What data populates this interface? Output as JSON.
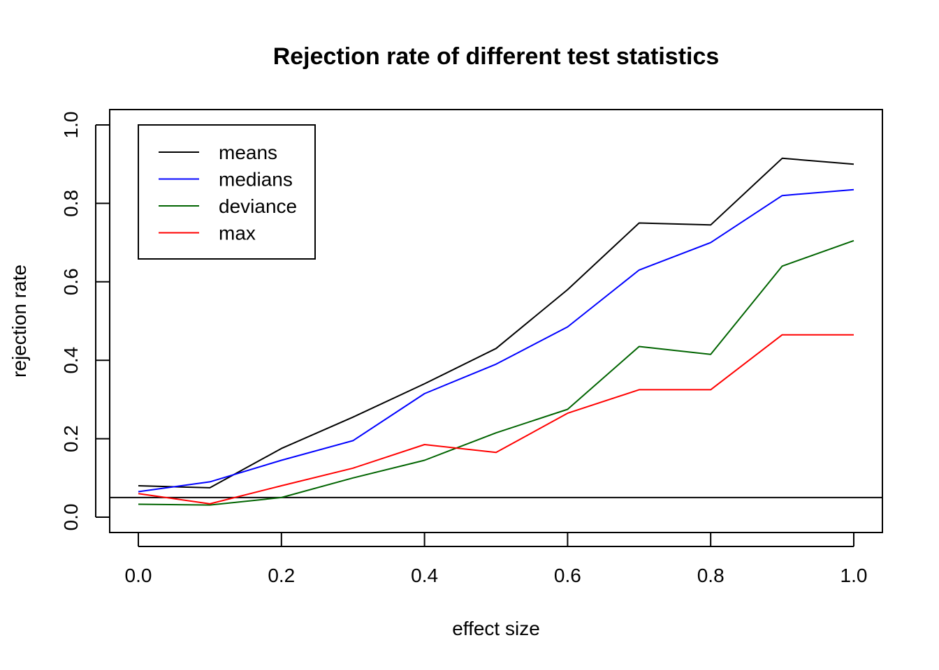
{
  "chart_data": {
    "type": "line",
    "title": "Rejection rate of different test statistics",
    "xlabel": "effect size",
    "ylabel": "rejection rate",
    "xlim": [
      0.0,
      1.0
    ],
    "ylim": [
      0.0,
      1.0
    ],
    "x_ticks": [
      "0.0",
      "0.2",
      "0.4",
      "0.6",
      "0.8",
      "1.0"
    ],
    "y_ticks": [
      "0.0",
      "0.2",
      "0.4",
      "0.6",
      "0.8",
      "1.0"
    ],
    "grid": false,
    "legend_position": "top-left",
    "x": [
      0.0,
      0.1,
      0.2,
      0.3,
      0.4,
      0.5,
      0.6,
      0.7,
      0.8,
      0.9,
      1.0
    ],
    "series": [
      {
        "name": "means",
        "color": "#000000",
        "values": [
          0.08,
          0.075,
          0.175,
          0.255,
          0.34,
          0.43,
          0.58,
          0.75,
          0.745,
          0.915,
          0.9
        ]
      },
      {
        "name": "medians",
        "color": "#0000FF",
        "values": [
          0.065,
          0.09,
          0.145,
          0.195,
          0.315,
          0.39,
          0.485,
          0.63,
          0.7,
          0.82,
          0.835
        ]
      },
      {
        "name": "deviance",
        "color": "#006400",
        "values": [
          0.033,
          0.031,
          0.05,
          0.1,
          0.145,
          0.215,
          0.275,
          0.435,
          0.415,
          0.64,
          0.705
        ]
      },
      {
        "name": "max",
        "color": "#FF0000",
        "values": [
          0.06,
          0.034,
          0.08,
          0.125,
          0.185,
          0.165,
          0.265,
          0.325,
          0.325,
          0.465,
          0.465
        ]
      }
    ],
    "reference_line": {
      "orientation": "horizontal",
      "y": 0.05,
      "color": "#000000"
    }
  }
}
